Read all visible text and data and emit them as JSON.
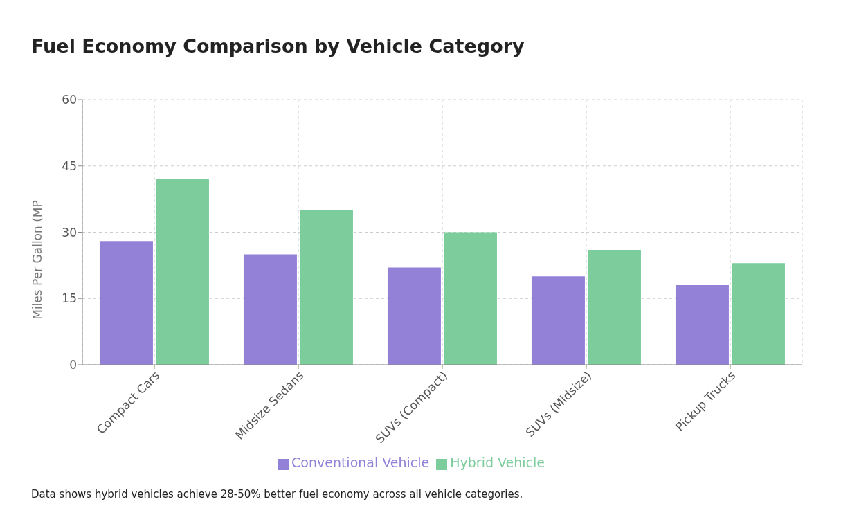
{
  "chart_data": {
    "type": "bar",
    "title": "Fuel Economy Comparison by Vehicle Category",
    "ylabel": "Miles Per Gallon (MP",
    "categories": [
      "Compact Cars",
      "Midsize Sedans",
      "SUVs (Compact)",
      "SUVs (Midsize)",
      "Pickup Trucks"
    ],
    "series": [
      {
        "name": "Conventional Vehicle",
        "color": "#9381d8",
        "values": [
          28,
          25,
          22,
          20,
          18
        ]
      },
      {
        "name": "Hybrid Vehicle",
        "color": "#7ccc9c",
        "values": [
          42,
          35,
          30,
          26,
          23
        ]
      }
    ],
    "ylim": [
      0,
      60
    ],
    "yticks": [
      0,
      15,
      30,
      45,
      60
    ],
    "grid": true,
    "legend": "bottom",
    "annotations": [
      "Data shows hybrid vehicles achieve 28-50% better fuel economy across all vehicle categories."
    ]
  }
}
